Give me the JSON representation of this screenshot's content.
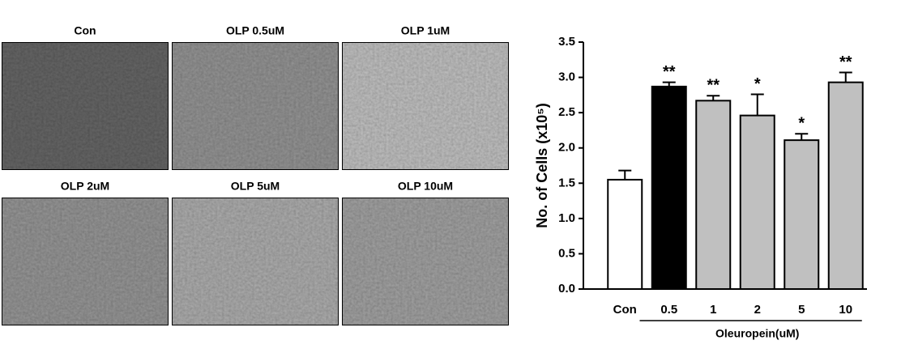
{
  "panels": [
    "Con",
    "OLP 0.5uM",
    "OLP 1uM",
    "OLP 2uM",
    "OLP 5uM",
    "OLP 10uM"
  ],
  "chart_data": {
    "type": "bar",
    "ylabel": "No. of Cells (x10⁵)",
    "xlabel": "Oleuropein(uM)",
    "categories": [
      "Con",
      "0.5",
      "1",
      "2",
      "5",
      "10"
    ],
    "values": [
      1.55,
      2.87,
      2.67,
      2.46,
      2.11,
      2.93
    ],
    "errors": [
      0.13,
      0.06,
      0.07,
      0.3,
      0.09,
      0.14
    ],
    "colors": [
      "#ffffff",
      "#000000",
      "#c0c0c0",
      "#c0c0c0",
      "#c0c0c0",
      "#c0c0c0"
    ],
    "significance": [
      null,
      "**",
      "**",
      "*",
      "*",
      "**"
    ],
    "ylim": [
      0,
      3.5
    ],
    "yticks": [
      {
        "value": 0,
        "label": "0.0"
      },
      0.5,
      {
        "value": 1,
        "label": "1.0"
      },
      1.5,
      {
        "value": 2,
        "label": "2.0"
      },
      2.5,
      {
        "value": 3,
        "label": "3.0"
      },
      3.5
    ]
  }
}
